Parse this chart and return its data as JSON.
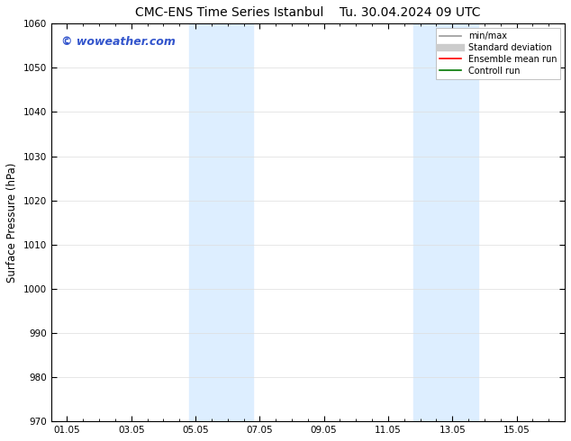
{
  "title_left": "CMC-ENS Time Series Istanbul",
  "title_right": "Tu. 30.04.2024 09 UTC",
  "ylabel": "Surface Pressure (hPa)",
  "xlabel": "",
  "ylim": [
    970,
    1060
  ],
  "yticks": [
    970,
    980,
    990,
    1000,
    1010,
    1020,
    1030,
    1040,
    1050,
    1060
  ],
  "xlim_start": -0.5,
  "xlim_end": 15.5,
  "xtick_positions": [
    0,
    2,
    4,
    6,
    8,
    10,
    12,
    14
  ],
  "xtick_labels": [
    "01.05",
    "03.05",
    "05.05",
    "07.05",
    "09.05",
    "11.05",
    "13.05",
    "15.05"
  ],
  "shaded_bands": [
    {
      "x_start": 3.8,
      "x_end": 5.8,
      "color": "#ddeeff"
    },
    {
      "x_start": 10.8,
      "x_end": 12.8,
      "color": "#ddeeff"
    }
  ],
  "watermark_text": "© woweather.com",
  "watermark_color": "#3355cc",
  "legend_entries": [
    {
      "label": "min/max",
      "color": "#999999",
      "lw": 1.2
    },
    {
      "label": "Standard deviation",
      "color": "#cccccc",
      "lw": 6
    },
    {
      "label": "Ensemble mean run",
      "color": "#ff0000",
      "lw": 1.2
    },
    {
      "label": "Controll run",
      "color": "#007700",
      "lw": 1.2
    }
  ],
  "bg_color": "#ffffff",
  "grid_color": "#dddddd",
  "title_fontsize": 10,
  "tick_fontsize": 7.5,
  "ylabel_fontsize": 8.5,
  "legend_fontsize": 7,
  "watermark_fontsize": 9
}
